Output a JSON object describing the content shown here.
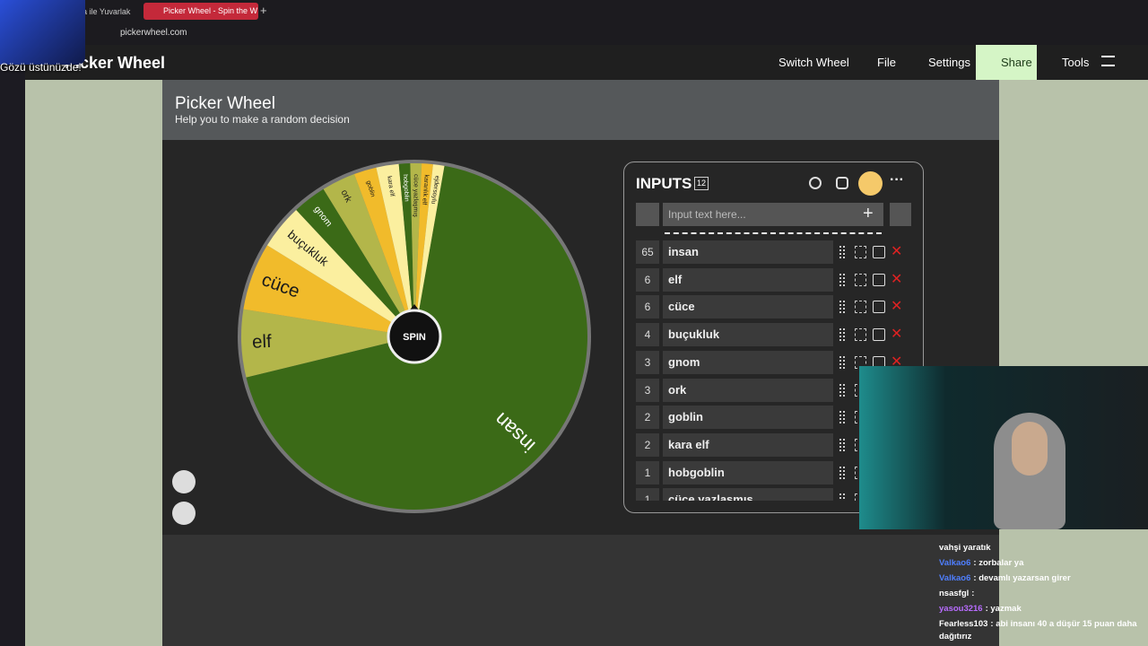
{
  "browser": {
    "tabs": [
      "a ile Yuvarlak",
      "Picker Wheel - Spin the W"
    ],
    "url": "pickerwheel.com"
  },
  "overlay_caption": "Gözü üstünüzde!",
  "nav": {
    "brand": "Picker Wheel",
    "items": [
      "Switch Wheel",
      "File",
      "Settings",
      "Share",
      "Tools"
    ]
  },
  "header": {
    "title": "Picker Wheel",
    "subtitle": "Help you to make a random decision"
  },
  "wheel": {
    "spin": "SPIN",
    "colors": [
      "#3b6a17",
      "#b3b64a",
      "#f1bb2b",
      "#fbef9f"
    ]
  },
  "inputs": {
    "title": "INPUTS",
    "count": "12",
    "placeholder": "Input text here...",
    "entries": [
      {
        "weight": 65,
        "label": "insan"
      },
      {
        "weight": 6,
        "label": "elf"
      },
      {
        "weight": 6,
        "label": "cüce"
      },
      {
        "weight": 4,
        "label": "buçukluk"
      },
      {
        "weight": 3,
        "label": "gnom"
      },
      {
        "weight": 3,
        "label": "ork"
      },
      {
        "weight": 2,
        "label": "goblin"
      },
      {
        "weight": 2,
        "label": "kara elf"
      },
      {
        "weight": 1,
        "label": "hobgoblin"
      },
      {
        "weight": 1,
        "label": "cüce yazlaşmış"
      },
      {
        "weight": 1,
        "label": "karanlık elf"
      },
      {
        "weight": 1,
        "label": "ejdersoylu"
      }
    ]
  },
  "chat": {
    "messages": [
      {
        "text": "vahşi yaratık"
      },
      {
        "user": "Valkao6",
        "text": ": zorbalar ya"
      },
      {
        "user": "Valkao6",
        "text": ": devamlı yazarsan girer"
      },
      {
        "user": "nsasfgl",
        "text": ":"
      },
      {
        "user": "yasou3216",
        "text": ": yazmak"
      },
      {
        "user": "Fearless103",
        "text": ": abi insanı 40 a düşür 15 puan daha dağıtırız"
      }
    ]
  }
}
